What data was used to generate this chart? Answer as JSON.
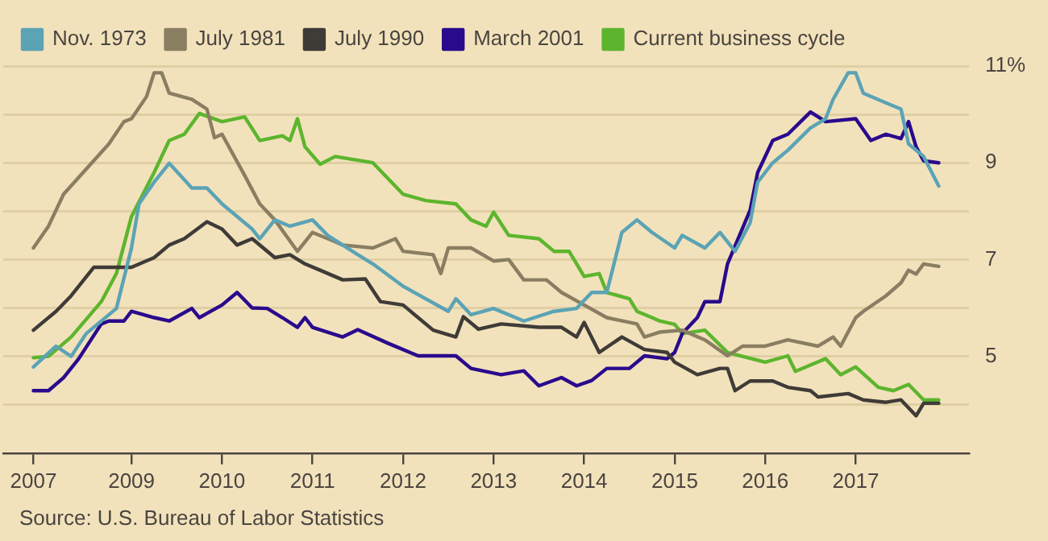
{
  "chart_data": {
    "type": "line",
    "xlim": [
      "2007-08",
      "2018-04"
    ],
    "xticks": [
      {
        "value": "2007-12",
        "label": "2007"
      },
      "2009",
      "2010",
      "2011",
      "2012",
      "2013",
      "2014",
      "2015",
      "2016",
      "2017"
    ],
    "ylim": [
      3,
      11
    ],
    "yticks": [
      {
        "value": 4,
        "label": null
      },
      5,
      {
        "value": 6,
        "label": null
      },
      7,
      {
        "value": 8,
        "label": null
      },
      9,
      {
        "value": 10,
        "label": null
      },
      {
        "value": 11,
        "label": "11%"
      }
    ],
    "grid": "y",
    "legend": "top left",
    "line_style": "solid",
    "annotations": [
      "Source: U.S. Bureau of Labor Statistics"
    ],
    "series": [
      {
        "name": "Nov. 1973",
        "color": "#5ba3b5",
        "x": [
          "2007-12",
          "2008-03",
          "2008-05",
          "2008-07",
          "2008-11",
          "2009-01",
          "2009-02",
          "2009-04",
          "2009-06",
          "2009-09",
          "2009-11",
          "2010-01",
          "2010-04",
          "2010-05",
          "2010-06",
          "2010-08",
          "2010-10",
          "2011-01",
          "2011-03",
          "2011-05",
          "2011-07",
          "2011-09",
          "2012-01",
          "2012-07",
          "2012-08",
          "2012-10",
          "2013-01",
          "2013-05",
          "2013-09",
          "2013-12",
          "2014-02",
          "2014-04",
          "2014-06",
          "2014-08",
          "2014-10",
          "2015-01",
          "2015-02",
          "2015-05",
          "2015-07",
          "2015-09",
          "2015-11",
          "2015-12",
          "2016-02",
          "2016-04",
          "2016-07",
          "2016-09",
          "2016-10",
          "2016-12",
          "2017-01",
          "2017-02",
          "2017-05",
          "2017-07",
          "2017-08",
          "2017-10",
          "2017-12"
        ],
        "values": [
          4.78,
          5.21,
          5.0,
          5.47,
          5.99,
          7.24,
          8.15,
          8.6,
          8.99,
          8.48,
          8.48,
          8.15,
          7.76,
          7.63,
          7.43,
          7.82,
          7.69,
          7.82,
          7.5,
          7.3,
          7.1,
          6.91,
          6.45,
          5.93,
          6.19,
          5.86,
          5.99,
          5.73,
          5.93,
          5.99,
          6.32,
          6.32,
          7.56,
          7.82,
          7.56,
          7.24,
          7.5,
          7.24,
          7.56,
          7.17,
          7.76,
          8.6,
          9.0,
          9.26,
          9.72,
          9.91,
          10.31,
          10.86,
          10.86,
          10.44,
          10.24,
          10.11,
          9.39,
          9.13,
          8.52
        ]
      },
      {
        "name": "July 1981",
        "color": "#8a7e62",
        "x": [
          "2007-12",
          "2008-02",
          "2008-04",
          "2008-07",
          "2008-10",
          "2008-12",
          "2009-01",
          "2009-03",
          "2009-04",
          "2009-05",
          "2009-06",
          "2009-09",
          "2009-11",
          "2009-12",
          "2010-01",
          "2010-04",
          "2010-06",
          "2010-08",
          "2010-11",
          "2011-01",
          "2011-04",
          "2011-05",
          "2011-09",
          "2011-12",
          "2012-01",
          "2012-05",
          "2012-06",
          "2012-07",
          "2012-10",
          "2013-01",
          "2013-03",
          "2013-05",
          "2013-08",
          "2013-10",
          "2014-01",
          "2014-04",
          "2014-08",
          "2014-09",
          "2014-11",
          "2015-02",
          "2015-05",
          "2015-08",
          "2015-10",
          "2016-01",
          "2016-04",
          "2016-08",
          "2016-10",
          "2016-11",
          "2017-01",
          "2017-02",
          "2017-05",
          "2017-07",
          "2017-08",
          "2017-09",
          "2017-10",
          "2017-12"
        ],
        "values": [
          7.24,
          7.69,
          8.35,
          8.87,
          9.39,
          9.85,
          9.91,
          10.37,
          10.86,
          10.86,
          10.44,
          10.31,
          10.11,
          9.52,
          9.59,
          8.74,
          8.15,
          7.82,
          7.17,
          7.56,
          7.37,
          7.3,
          7.24,
          7.43,
          7.17,
          7.1,
          6.71,
          7.24,
          7.24,
          6.97,
          7.0,
          6.58,
          6.58,
          6.32,
          6.06,
          5.8,
          5.67,
          5.4,
          5.5,
          5.54,
          5.34,
          5.01,
          5.21,
          5.21,
          5.34,
          5.21,
          5.4,
          5.21,
          5.8,
          5.93,
          6.25,
          6.52,
          6.78,
          6.7,
          6.91,
          6.86
        ]
      },
      {
        "name": "July 1990",
        "color": "#3f3b37",
        "x": [
          "2007-12",
          "2008-03",
          "2008-05",
          "2008-08",
          "2008-10",
          "2009-01",
          "2009-04",
          "2009-06",
          "2009-08",
          "2009-11",
          "2010-01",
          "2010-03",
          "2010-05",
          "2010-08",
          "2010-10",
          "2010-12",
          "2011-02",
          "2011-05",
          "2011-08",
          "2011-10",
          "2012-01",
          "2012-05",
          "2012-08",
          "2012-09",
          "2012-11",
          "2013-02",
          "2013-07",
          "2013-10",
          "2013-12",
          "2014-01",
          "2014-03",
          "2014-06",
          "2014-09",
          "2014-12",
          "2015-01",
          "2015-04",
          "2015-07",
          "2015-08",
          "2015-09",
          "2015-11",
          "2016-02",
          "2016-04",
          "2016-07",
          "2016-08",
          "2016-12",
          "2017-02",
          "2017-05",
          "2017-07",
          "2017-09",
          "2017-10",
          "2017-12"
        ],
        "values": [
          5.54,
          5.93,
          6.25,
          6.84,
          6.84,
          6.84,
          7.04,
          7.3,
          7.43,
          7.78,
          7.63,
          7.3,
          7.43,
          7.04,
          7.1,
          6.91,
          6.78,
          6.58,
          6.6,
          6.13,
          6.06,
          5.54,
          5.4,
          5.82,
          5.56,
          5.67,
          5.6,
          5.6,
          5.4,
          5.7,
          5.08,
          5.4,
          5.14,
          5.08,
          4.88,
          4.62,
          4.75,
          4.75,
          4.29,
          4.49,
          4.49,
          4.36,
          4.29,
          4.16,
          4.23,
          4.1,
          4.05,
          4.1,
          3.77,
          4.03,
          4.03
        ]
      },
      {
        "name": "March 2001",
        "color": "#2a0a8c",
        "x": [
          "2007-12",
          "2008-02",
          "2008-04",
          "2008-06",
          "2008-09",
          "2008-10",
          "2008-12",
          "2009-01",
          "2009-04",
          "2009-06",
          "2009-09",
          "2009-10",
          "2010-01",
          "2010-03",
          "2010-05",
          "2010-07",
          "2010-09",
          "2010-11",
          "2010-12",
          "2011-01",
          "2011-05",
          "2011-07",
          "2011-11",
          "2012-03",
          "2012-08",
          "2012-10",
          "2013-02",
          "2013-05",
          "2013-07",
          "2013-10",
          "2013-12",
          "2014-02",
          "2014-04",
          "2014-07",
          "2014-09",
          "2014-12",
          "2015-01",
          "2015-02",
          "2015-04",
          "2015-05",
          "2015-07",
          "2015-08",
          "2015-11",
          "2015-12",
          "2016-02",
          "2016-04",
          "2016-07",
          "2016-09",
          "2017-01",
          "2017-03",
          "2017-05",
          "2017-07",
          "2017-08",
          "2017-09",
          "2017-10",
          "2017-12"
        ],
        "values": [
          4.29,
          4.29,
          4.56,
          4.95,
          5.67,
          5.73,
          5.73,
          5.93,
          5.8,
          5.73,
          5.99,
          5.8,
          6.06,
          6.32,
          6.0,
          5.99,
          5.8,
          5.6,
          5.8,
          5.6,
          5.4,
          5.55,
          5.27,
          5.01,
          5.01,
          4.75,
          4.62,
          4.7,
          4.39,
          4.56,
          4.39,
          4.5,
          4.75,
          4.75,
          5.01,
          4.95,
          5.08,
          5.47,
          5.8,
          6.13,
          6.13,
          6.91,
          8.02,
          8.8,
          9.46,
          9.59,
          10.05,
          9.85,
          9.91,
          9.46,
          9.59,
          9.5,
          9.85,
          9.33,
          9.04,
          9.0
        ]
      },
      {
        "name": "Current business cycle",
        "color": "#5db52d",
        "x": [
          "2007-12",
          "2008-02",
          "2008-05",
          "2008-09",
          "2008-11",
          "2009-01",
          "2009-04",
          "2009-06",
          "2009-08",
          "2009-10",
          "2010-01",
          "2010-04",
          "2010-06",
          "2010-09",
          "2010-10",
          "2010-11",
          "2010-12",
          "2011-02",
          "2011-04",
          "2011-09",
          "2012-01",
          "2012-04",
          "2012-08",
          "2012-10",
          "2012-12",
          "2013-01",
          "2013-03",
          "2013-07",
          "2013-09",
          "2013-11",
          "2014-01",
          "2014-03",
          "2014-04",
          "2014-07",
          "2014-08",
          "2014-10",
          "2014-11",
          "2015-01",
          "2015-02",
          "2015-05",
          "2015-08",
          "2016-01",
          "2016-04",
          "2016-05",
          "2016-09",
          "2016-11",
          "2017-01",
          "2017-04",
          "2017-06",
          "2017-08",
          "2017-10",
          "2017-12"
        ],
        "values": [
          4.97,
          5.0,
          5.4,
          6.13,
          6.71,
          7.89,
          8.8,
          9.46,
          9.59,
          10.02,
          9.85,
          9.95,
          9.46,
          9.56,
          9.46,
          9.91,
          9.33,
          8.97,
          9.13,
          9.0,
          8.35,
          8.22,
          8.15,
          7.82,
          7.69,
          7.98,
          7.5,
          7.43,
          7.17,
          7.17,
          6.65,
          6.71,
          6.32,
          6.19,
          5.93,
          5.8,
          5.73,
          5.66,
          5.47,
          5.54,
          5.08,
          4.88,
          5.01,
          4.69,
          4.95,
          4.62,
          4.78,
          4.36,
          4.29,
          4.42,
          4.1,
          4.1
        ]
      }
    ]
  }
}
